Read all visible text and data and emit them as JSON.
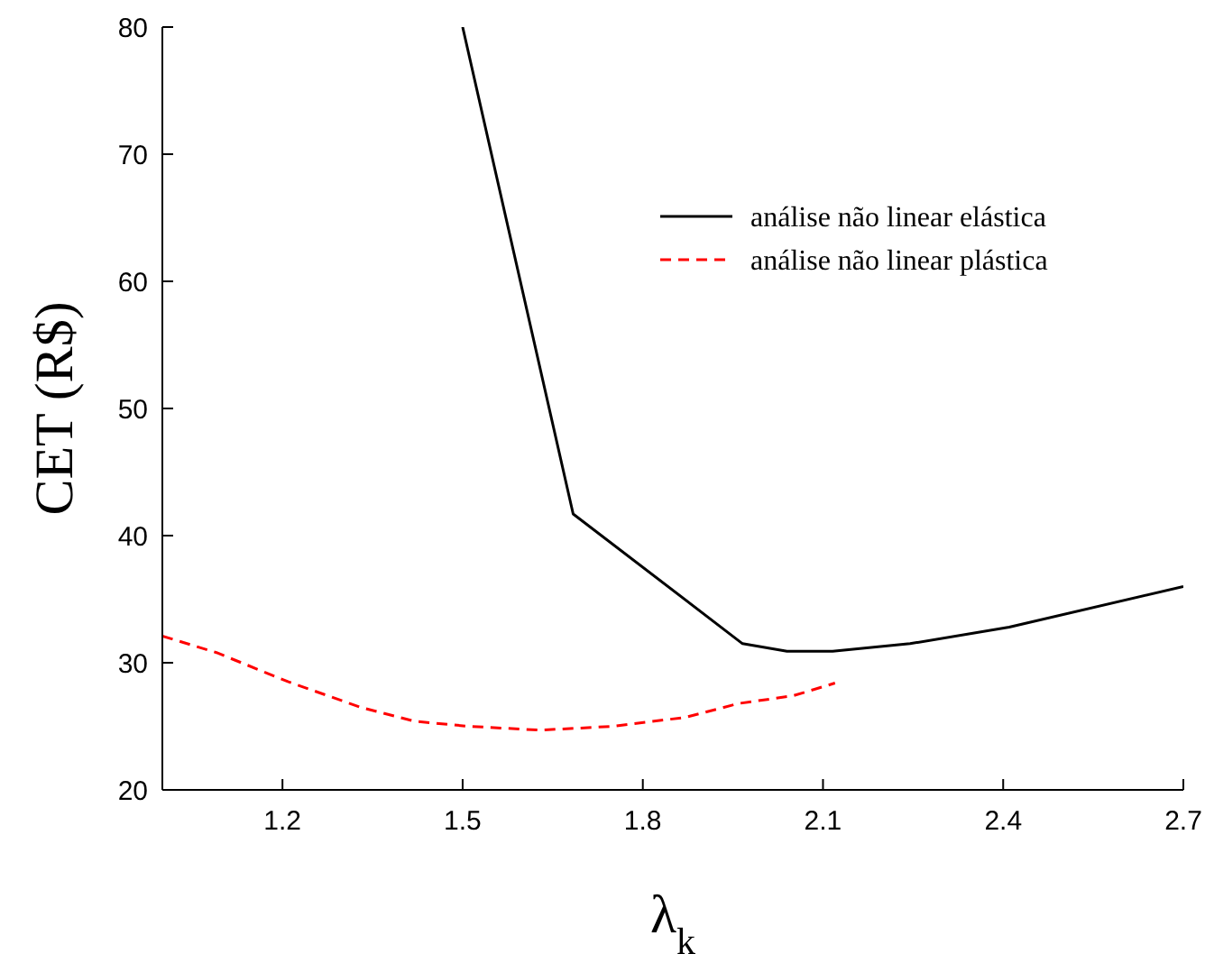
{
  "chart_data": {
    "type": "line",
    "xlabel": "λ$_{k}$",
    "ylabel": "CET (R$)",
    "xlim": [
      1.0,
      2.7
    ],
    "xticks": [
      1.2,
      1.5,
      1.8,
      2.1,
      2.4,
      2.7
    ],
    "ylim": [
      20,
      80
    ],
    "yticks": [
      20,
      30,
      40,
      50,
      60,
      70,
      80
    ],
    "grid": false,
    "legend": "top right",
    "marker": "none",
    "series": [
      {
        "name": "análise não linear elástica",
        "color": "#000000",
        "line_style": "solid",
        "x": [
          1.5,
          1.684,
          1.966,
          2.04,
          2.116,
          2.245,
          2.41,
          2.7
        ],
        "values": [
          80,
          41.7,
          31.5,
          30.9,
          30.9,
          31.5,
          32.8,
          36.0
        ]
      },
      {
        "name": "análise não linear plástica",
        "color": "#ff0000",
        "line_style": "dashed",
        "x": [
          1.0,
          1.09,
          1.21,
          1.33,
          1.42,
          1.51,
          1.63,
          1.75,
          1.87,
          1.96,
          2.05,
          2.12
        ],
        "values": [
          32.1,
          30.8,
          28.5,
          26.5,
          25.4,
          25.0,
          24.7,
          25.0,
          25.7,
          26.8,
          27.4,
          28.4
        ]
      }
    ]
  }
}
